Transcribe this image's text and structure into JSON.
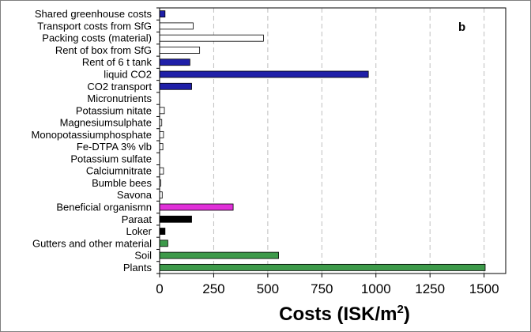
{
  "chart_data": {
    "type": "bar",
    "orientation": "horizontal",
    "panel_label": "b",
    "title": "",
    "xlabel": {
      "main": "Costs (ISK/m",
      "superscript": "2",
      "close": ")"
    },
    "ylabel": "",
    "xlim": [
      0,
      1600
    ],
    "xticks": [
      0,
      250,
      500,
      750,
      1000,
      1250,
      1500
    ],
    "grid": "vertical-dashed",
    "legend": "none",
    "categories": [
      "Shared greenhouse costs",
      "Transport costs from SfG",
      "Packing costs (material)",
      "Rent of box from SfG",
      "Rent of 6 t tank",
      "liquid CO2",
      "CO2 transport",
      "Micronutrients",
      "Potassium nitate",
      "Magnesiumsulphate",
      "Monopotassiumphosphate",
      "Fe-DTPA 3% vlb",
      "Potassium sulfate",
      "Calciumnitrate",
      "Bumble bees",
      "Savona",
      "Beneficial organismn",
      "Paraat",
      "Loker",
      "Gutters and other material",
      "Soil",
      "Plants"
    ],
    "values": [
      25,
      155,
      480,
      185,
      140,
      965,
      148,
      0,
      22,
      10,
      18,
      15,
      0,
      18,
      5,
      12,
      340,
      148,
      25,
      38,
      550,
      1505
    ],
    "colors": [
      "#1f1fa8",
      "#ffffff",
      "#ffffff",
      "#ffffff",
      "#1f1fa8",
      "#1f1fa8",
      "#1f1fa8",
      "#ffffff",
      "#ffffff",
      "#ffffff",
      "#ffffff",
      "#ffffff",
      "#ffffff",
      "#ffffff",
      "#ffffff",
      "#ffffff",
      "#e030d8",
      "#000000",
      "#000000",
      "#3d9a4a",
      "#3d9a4a",
      "#3d9a4a"
    ]
  }
}
